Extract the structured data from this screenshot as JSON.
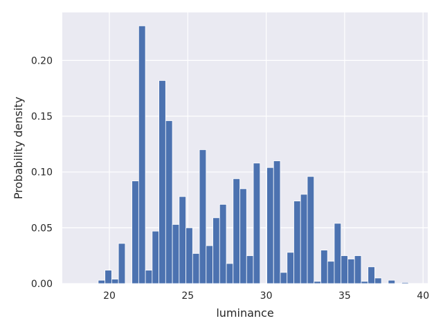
{
  "chart_data": {
    "type": "bar",
    "title": "",
    "xlabel": "luminance",
    "ylabel": "Probability density",
    "xlim": [
      17.0,
      40.3
    ],
    "ylim": [
      0,
      0.243
    ],
    "xticks": [
      20,
      25,
      30,
      35,
      40
    ],
    "xtick_labels": [
      "20",
      "25",
      "30",
      "35",
      "40"
    ],
    "yticks": [
      0.0,
      0.05,
      0.1,
      0.15,
      0.2
    ],
    "ytick_labels": [
      "0.00",
      "0.05",
      "0.10",
      "0.15",
      "0.20"
    ],
    "grid": true,
    "background": "#eaeaf2",
    "bar_color": "#4c72b0",
    "bin_edges": [
      18.0,
      18.43,
      18.86,
      19.29,
      19.72,
      20.15,
      20.58,
      21.01,
      21.44,
      21.87,
      22.3,
      22.73,
      23.16,
      23.59,
      24.02,
      24.45,
      24.88,
      25.31,
      25.74,
      26.17,
      26.6,
      27.03,
      27.46,
      27.89,
      28.32,
      28.75,
      29.18,
      29.61,
      30.04,
      30.47,
      30.9,
      31.33,
      31.76,
      32.19,
      32.62,
      33.05,
      33.48,
      33.91,
      34.34,
      34.77,
      35.2,
      35.63,
      36.06,
      36.49,
      36.92,
      37.35,
      37.78,
      38.21,
      38.64,
      39.07
    ],
    "values": [
      0.0,
      0.0,
      0.0,
      0.003,
      0.012,
      0.004,
      0.036,
      0.0,
      0.092,
      0.231,
      0.012,
      0.047,
      0.182,
      0.146,
      0.053,
      0.078,
      0.05,
      0.027,
      0.12,
      0.034,
      0.059,
      0.071,
      0.018,
      0.094,
      0.085,
      0.025,
      0.108,
      0.0,
      0.104,
      0.11,
      0.01,
      0.028,
      0.074,
      0.08,
      0.096,
      0.002,
      0.03,
      0.02,
      0.054,
      0.025,
      0.022,
      0.025,
      0.002,
      0.015,
      0.005,
      0.0,
      0.003,
      0.0,
      0.001
    ]
  }
}
